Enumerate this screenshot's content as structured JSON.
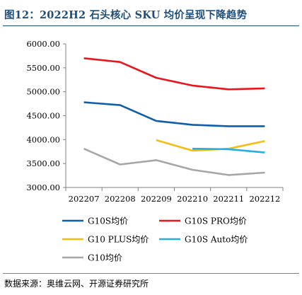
{
  "header": {
    "title": "图12：2022H2 石头核心 SKU 均价呈现下降趋势"
  },
  "footer": {
    "source": "数据来源：奥维云网、开源证券研究所"
  },
  "chart_data": {
    "type": "line",
    "title": "图12：2022H2 石头核心 SKU 均价呈现下降趋势",
    "xlabel": "",
    "ylabel": "",
    "categories": [
      "202207",
      "202208",
      "202209",
      "202210",
      "202211",
      "202212"
    ],
    "ylim": [
      3000,
      6000
    ],
    "yticks": [
      "3000.00",
      "3500.00",
      "4000.00",
      "4500.00",
      "5000.00",
      "5500.00",
      "6000.00"
    ],
    "grid": false,
    "legend_position": "bottom",
    "series": [
      {
        "name": "G10S均价",
        "color": "#0f5eae",
        "values": [
          4780,
          4720,
          4390,
          4310,
          4280,
          4280
        ]
      },
      {
        "name": "G10S PRO均价",
        "color": "#e8161d",
        "values": [
          5700,
          5620,
          5290,
          5130,
          5050,
          5070
        ]
      },
      {
        "name": "G10 PLUS均价",
        "color": "#f5bd0f",
        "values": [
          null,
          null,
          3990,
          3770,
          3810,
          3970
        ]
      },
      {
        "name": "G10S Auto均价",
        "color": "#27aede",
        "values": [
          null,
          null,
          null,
          3810,
          3800,
          3730
        ]
      },
      {
        "name": "G10均价",
        "color": "#a6a6a6",
        "values": [
          3810,
          3480,
          3570,
          3370,
          3260,
          3310
        ]
      }
    ]
  }
}
